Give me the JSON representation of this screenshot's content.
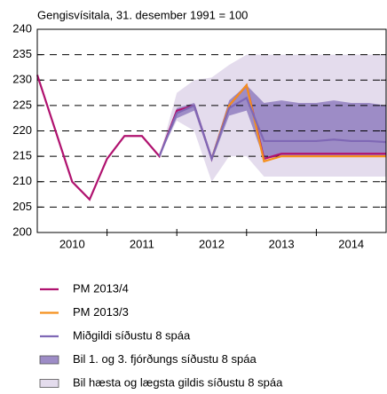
{
  "chart_data": {
    "type": "line",
    "title": "Gengisvísitala, 31. desember 1991 = 100",
    "categories": [
      null,
      null,
      "2010",
      null,
      null,
      null,
      "2011",
      null,
      null,
      null,
      "2012",
      null,
      null,
      null,
      "2013",
      null,
      null,
      null,
      "2014",
      null,
      null
    ],
    "ylim": [
      200,
      240
    ],
    "yticks": [
      200,
      205,
      210,
      215,
      220,
      225,
      230,
      235,
      240
    ],
    "grid": true,
    "series": [
      {
        "name": "PM 2013/4",
        "color": "#b0126f",
        "values": [
          231,
          220.5,
          210,
          206.5,
          214.5,
          219,
          219,
          215,
          224,
          225,
          214.5,
          225,
          229,
          214.5,
          215.5,
          215.5,
          215.5,
          215.5,
          215.5,
          215.5,
          215.5
        ]
      },
      {
        "name": "PM 2013/3",
        "color": "#f5901e",
        "values": [
          null,
          null,
          null,
          null,
          null,
          null,
          null,
          null,
          null,
          null,
          214.5,
          225,
          229,
          214,
          215,
          215,
          215,
          215,
          215,
          215,
          215
        ]
      },
      {
        "name": "Miðgildi síðustu 8 spáa",
        "color": "#7f68b5",
        "values": [
          null,
          null,
          null,
          null,
          null,
          null,
          null,
          215,
          223.5,
          225,
          214.5,
          224.5,
          226.5,
          218,
          218,
          218,
          218,
          218.3,
          218,
          218,
          217.8
        ]
      }
    ],
    "bands": [
      {
        "name": "Bil hæsta og lægsta gildis síðustu 8 spáa",
        "color": "#e4dced",
        "low": [
          null,
          null,
          null,
          null,
          null,
          null,
          null,
          215,
          222,
          220,
          210,
          215,
          215,
          211,
          211,
          211,
          211,
          211,
          211,
          211,
          211
        ],
        "high": [
          null,
          null,
          null,
          null,
          null,
          null,
          null,
          215,
          227.5,
          230,
          230.5,
          233,
          235,
          235,
          235,
          235,
          235,
          235,
          235,
          235,
          235
        ]
      },
      {
        "name": "Bil 1. og 3. fjórðungs síðustu 8 spáa",
        "color": "#9d8cc6",
        "low": [
          null,
          null,
          null,
          null,
          null,
          null,
          null,
          215,
          222.5,
          224,
          214,
          223,
          224,
          214.5,
          215,
          215,
          215,
          215,
          215,
          215,
          215
        ],
        "high": [
          null,
          null,
          null,
          null,
          null,
          null,
          null,
          215,
          224.5,
          225.5,
          215,
          226,
          229,
          225.5,
          226,
          225.5,
          225.5,
          226,
          225.5,
          225.5,
          225
        ]
      }
    ]
  }
}
